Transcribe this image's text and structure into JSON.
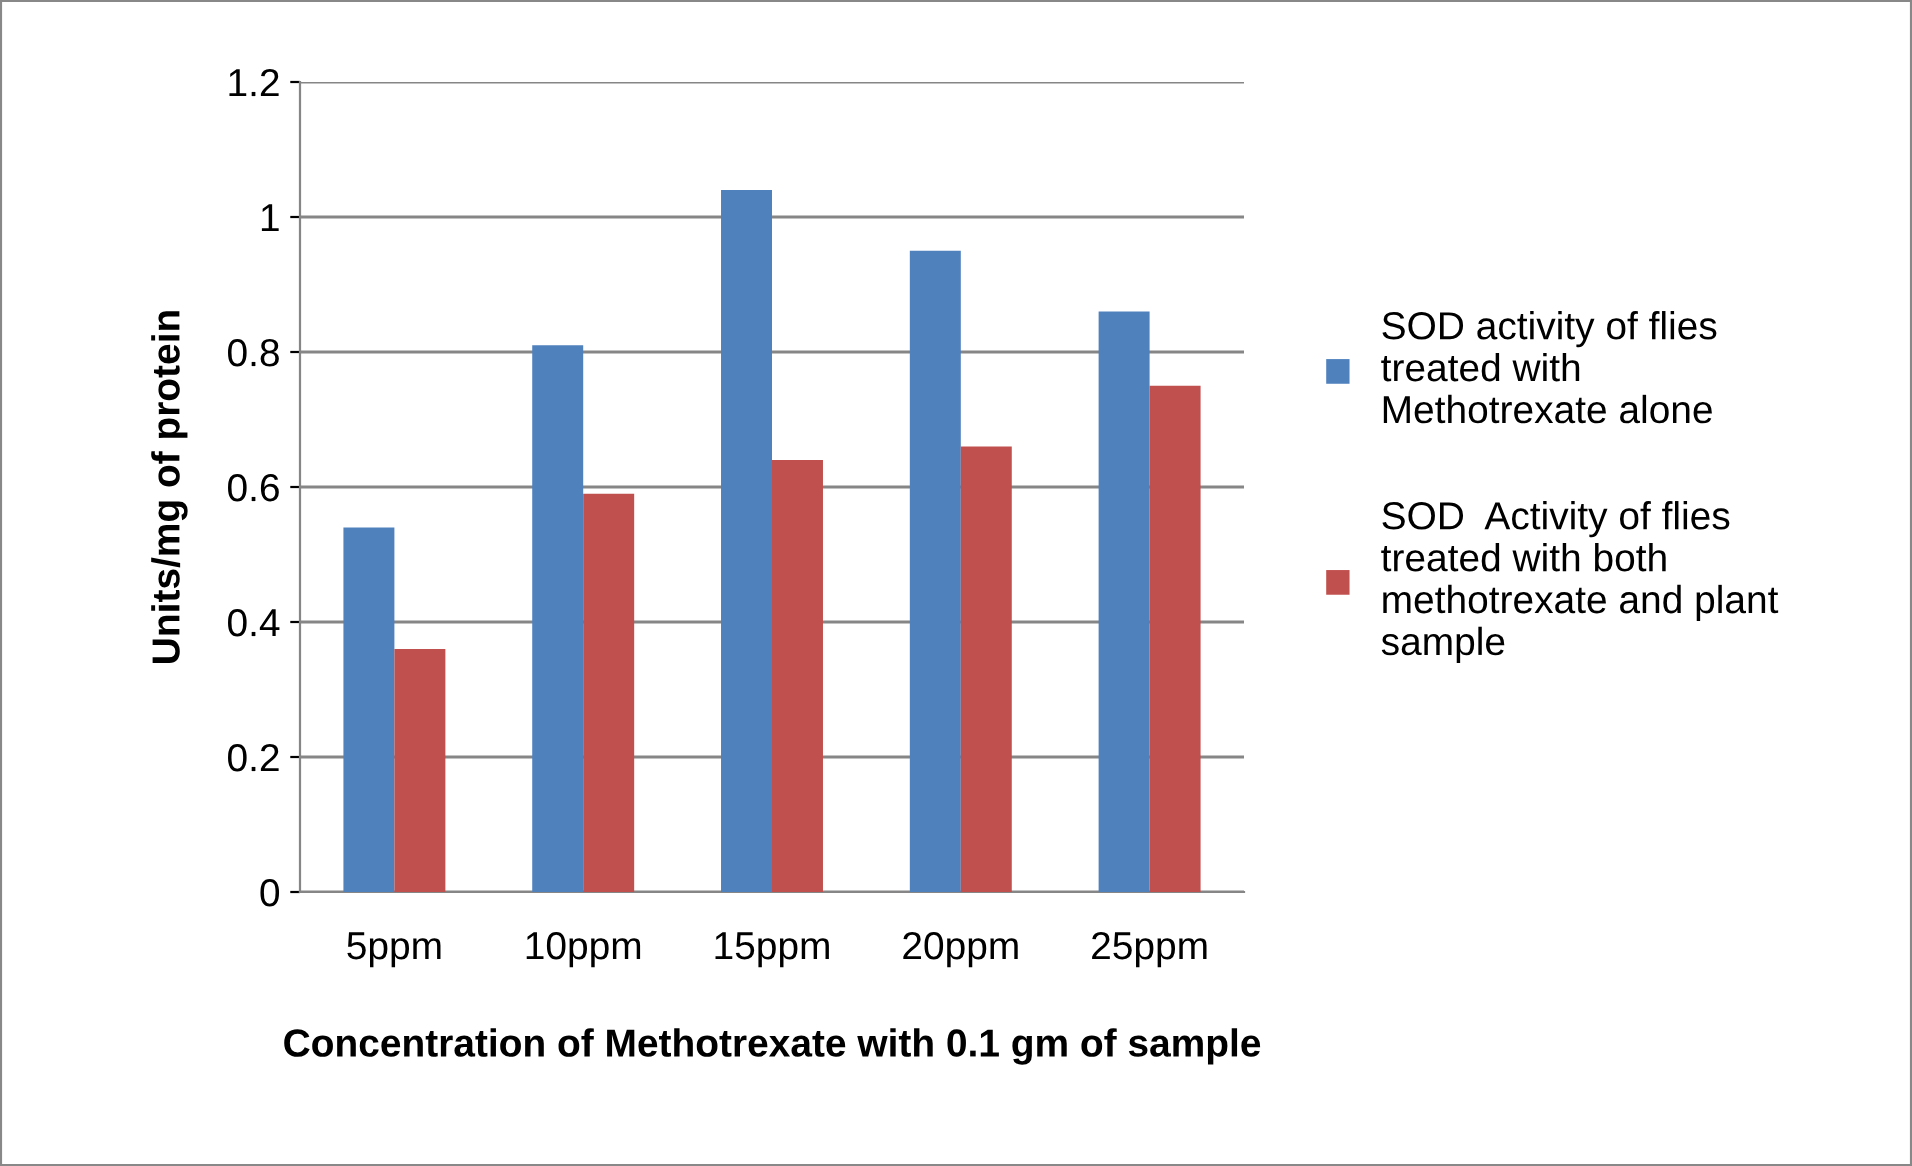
{
  "chart_data": {
    "type": "bar",
    "xlabel": "Concentration of Methotrexate with 0.1 gm of sample",
    "ylabel": "Units/mg of protein",
    "categories": [
      "5ppm",
      "10ppm",
      "15ppm",
      "20ppm",
      "25ppm"
    ],
    "series": [
      {
        "name": "SOD activity of flies\ntreated with\nMethotrexate alone",
        "color": "#4f81bd",
        "values": [
          0.54,
          0.81,
          1.04,
          0.95,
          0.86
        ]
      },
      {
        "name": "SOD  Activity of flies\ntreated with both\nmethotrexate and plant\nsample",
        "color": "#c0504d",
        "values": [
          0.36,
          0.59,
          0.64,
          0.66,
          0.75
        ]
      }
    ],
    "ylim": [
      0,
      1.2
    ],
    "yticks": [
      0,
      {
        "value": 0.2,
        "label": "0.2"
      },
      {
        "value": 0.4,
        "label": "0.4"
      },
      {
        "value": 0.6,
        "label": "0.6"
      },
      {
        "value": 0.8,
        "label": "0.8"
      },
      1,
      {
        "value": 1.2,
        "label": "1.2"
      }
    ],
    "grid": "y",
    "legend": "right"
  }
}
